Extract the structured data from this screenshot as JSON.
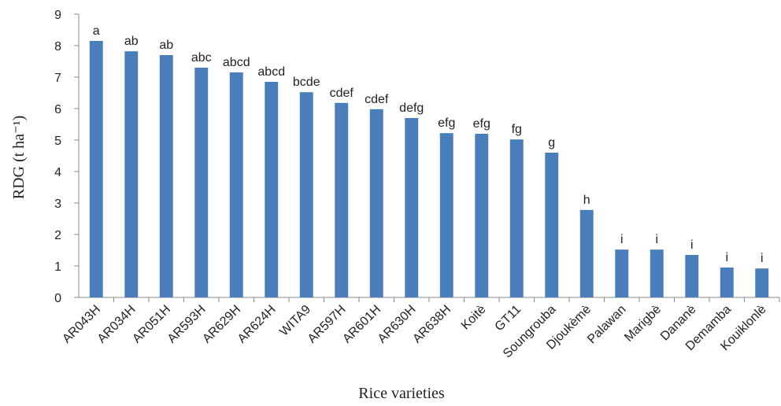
{
  "chart_data": {
    "type": "bar",
    "y_label": "RDG (t ha⁻¹)",
    "x_label": "Rice varieties",
    "categories": [
      "AR043H",
      "AR034H",
      "AR051H",
      "AR593H",
      "AR629H",
      "AR624H",
      "WITA9",
      "AR597H",
      "AR601H",
      "AR630H",
      "AR638H",
      "Koitè",
      "GT11",
      "Soungrouba",
      "Djoukèmè",
      "Palawan",
      "Marigbè",
      "Dananè",
      "Demamba",
      "Kouiklonlè"
    ],
    "values": [
      8.15,
      7.82,
      7.7,
      7.3,
      7.15,
      6.85,
      6.52,
      6.18,
      5.98,
      5.7,
      5.22,
      5.2,
      5.02,
      4.6,
      2.78,
      1.52,
      1.52,
      1.35,
      0.95,
      0.92
    ],
    "group_letters": [
      "a",
      "ab",
      "ab",
      "abc",
      "abcd",
      "abcd",
      "bcde",
      "cdef",
      "cdef",
      "defg",
      "efg",
      "efg",
      "fg",
      "g",
      "h",
      "i",
      "i",
      "i",
      "i",
      "i"
    ],
    "color": "#4a7ebb",
    "ylim": [
      0,
      9
    ],
    "yticks": [
      0,
      1,
      2,
      3,
      4,
      5,
      6,
      7,
      8,
      9
    ],
    "grid": false
  }
}
